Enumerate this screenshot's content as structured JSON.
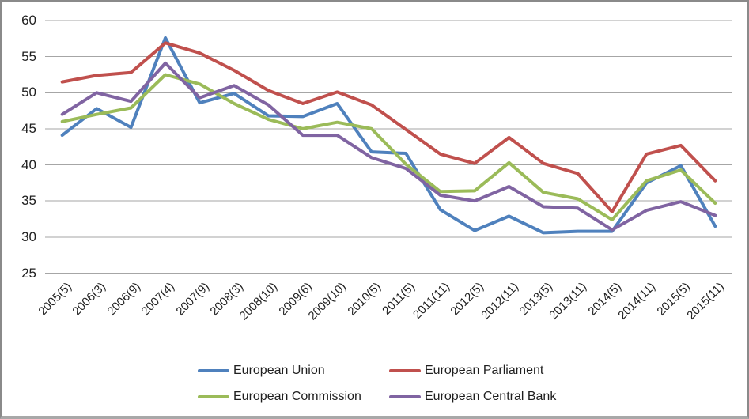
{
  "chart_data": {
    "type": "line",
    "title": "",
    "xlabel": "",
    "ylabel": "",
    "categories": [
      "2005(5)",
      "2006(3)",
      "2006(9)",
      "2007(4)",
      "2007(9)",
      "2008(3)",
      "2008(10)",
      "2009(6)",
      "2009(10)",
      "2010(5)",
      "2011(5)",
      "2011(11)",
      "2012(5)",
      "2012(11)",
      "2013(5)",
      "2013(11)",
      "2014(5)",
      "2014(11)",
      "2015(5)",
      "2015(11)"
    ],
    "series": [
      {
        "name": "European Union",
        "color": "#4F81BD",
        "values": [
          44.1,
          47.8,
          45.2,
          57.6,
          48.6,
          49.9,
          46.8,
          46.7,
          48.5,
          41.8,
          41.6,
          33.8,
          30.9,
          32.9,
          30.6,
          30.8,
          30.8,
          37.5,
          39.9,
          31.5
        ]
      },
      {
        "name": "European Parliament",
        "color": "#C0504D",
        "values": [
          51.5,
          52.4,
          52.8,
          56.9,
          55.5,
          53.1,
          50.3,
          48.5,
          50.1,
          48.3,
          44.9,
          41.5,
          40.2,
          43.8,
          40.2,
          38.8,
          33.5,
          41.5,
          42.7,
          37.8
        ]
      },
      {
        "name": "European Commission",
        "color": "#9BBB59",
        "values": [
          46.0,
          47.0,
          47.9,
          52.5,
          51.2,
          48.5,
          46.3,
          45.0,
          45.9,
          45.0,
          40.1,
          36.3,
          36.4,
          40.3,
          36.2,
          35.3,
          32.4,
          37.8,
          39.3,
          34.7
        ]
      },
      {
        "name": "European Central Bank",
        "color": "#8064A2",
        "values": [
          47.0,
          50.0,
          48.8,
          54.1,
          49.3,
          51.0,
          48.3,
          44.1,
          44.1,
          41.0,
          39.5,
          35.8,
          35.0,
          37.0,
          34.2,
          34.0,
          31.0,
          33.7,
          34.9,
          33.0
        ]
      }
    ],
    "ylim": [
      25,
      60
    ],
    "yticks": [
      60,
      55,
      50,
      45,
      40,
      35,
      30,
      25
    ],
    "grid": "horizontal",
    "legend_position": "bottom"
  },
  "style": {
    "gridline_color": "#A6A6A6",
    "text_color": "#1F1F1F",
    "background": "#FFFFFF",
    "frame_border_color": "#8A8A8A"
  }
}
